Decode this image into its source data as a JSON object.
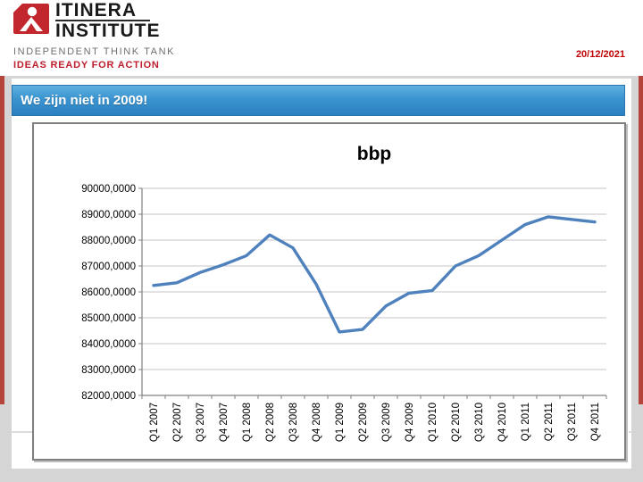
{
  "header": {
    "logo": {
      "name_line1": "ITINERA",
      "name_line2": "INSTITUTE",
      "subtitle": "INDEPENDENT THINK TANK",
      "tagline": "IDEAS READY FOR ACTION",
      "mark_color": "#c2272d"
    },
    "date": "20/12/2021"
  },
  "banner": {
    "title": "We zijn niet in 2009!",
    "background_top": "#5fb0e0",
    "background_bottom": "#2b7fc0"
  },
  "colors": {
    "accent_red_edge": "#b5443b",
    "date_red": "#c00000",
    "tagline_red": "#be1e2d",
    "chart_line": "#4f81bd",
    "gridline": "#c6c6c6",
    "axis": "#808080"
  },
  "chart_data": {
    "type": "line",
    "title": "bbp",
    "categories": [
      "Q1 2007",
      "Q2 2007",
      "Q3 2007",
      "Q4 2007",
      "Q1 2008",
      "Q2 2008",
      "Q3 2008",
      "Q4 2008",
      "Q1 2009",
      "Q2 2009",
      "Q3 2009",
      "Q4 2009",
      "Q1 2010",
      "Q2 2010",
      "Q3 2010",
      "Q4 2010",
      "Q1 2011",
      "Q2 2011",
      "Q3 2011",
      "Q4 2011"
    ],
    "values": [
      86250,
      86350,
      86750,
      87050,
      87400,
      88200,
      87700,
      86300,
      84450,
      84550,
      85450,
      85950,
      86050,
      87000,
      87400,
      88000,
      88600,
      88900,
      88800,
      88700
    ],
    "xlabel": "",
    "ylabel": "",
    "ylim": [
      82000,
      90000
    ],
    "ytick_step": 1000,
    "ytick_labels": [
      "90000,0000",
      "89000,0000",
      "88000,0000",
      "87000,0000",
      "86000,0000",
      "85000,0000",
      "84000,0000",
      "83000,0000",
      "82000,0000"
    ],
    "grid": true,
    "legend": "none",
    "line_color": "#4f81bd"
  }
}
